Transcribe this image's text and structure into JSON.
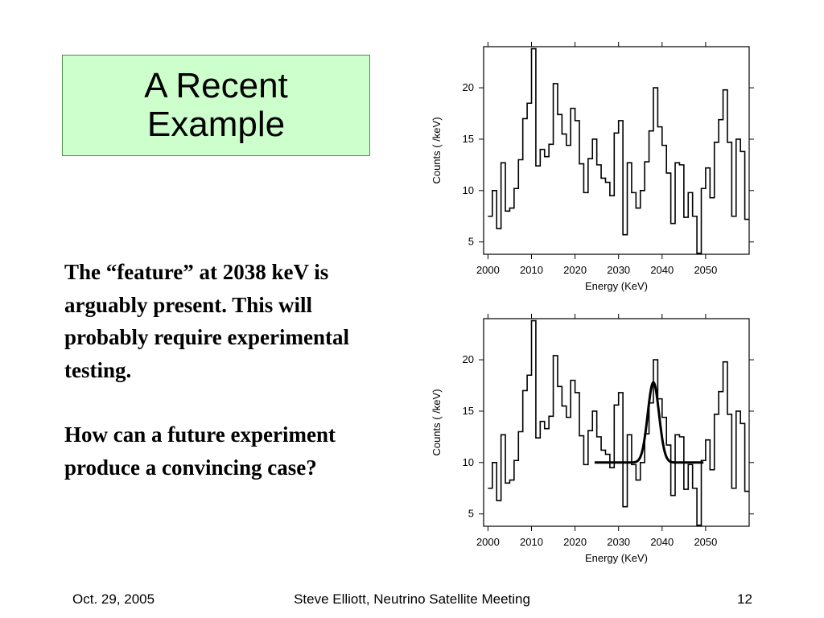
{
  "slide": {
    "title": "A Recent\nExample",
    "paragraphs": [
      "The “feature” at 2038 keV is arguably present. This will probably require experimental testing.",
      "How can a future experiment produce a convincing case?"
    ]
  },
  "footer": {
    "date": "Oct. 29, 2005",
    "center": "Steve Elliott, Neutrino Satellite Meeting",
    "page": "12"
  },
  "chart_data": [
    {
      "type": "line",
      "step": true,
      "xlabel": "Energy (KeV)",
      "ylabel": "Counts ( /keV)",
      "xlim": [
        1999,
        2060
      ],
      "ylim": [
        3.8,
        24
      ],
      "xticks": [
        2000,
        2010,
        2020,
        2030,
        2040,
        2050
      ],
      "yticks": [
        5,
        10,
        15,
        20
      ],
      "series": [
        {
          "x": [
            2000,
            2001,
            2002,
            2003,
            2004,
            2005,
            2006,
            2007,
            2008,
            2009,
            2010,
            2011,
            2012,
            2013,
            2014,
            2015,
            2016,
            2017,
            2018,
            2019,
            2020,
            2021,
            2022,
            2023,
            2024,
            2025,
            2026,
            2027,
            2028,
            2029,
            2030,
            2031,
            2032,
            2033,
            2034,
            2035,
            2036,
            2037,
            2038,
            2039,
            2040,
            2041,
            2042,
            2043,
            2044,
            2045,
            2046,
            2047,
            2048,
            2049,
            2050,
            2051,
            2052,
            2053,
            2054,
            2055,
            2056,
            2057,
            2058,
            2059
          ],
          "y": [
            7.5,
            10,
            6.3,
            12.7,
            8,
            8.3,
            10.2,
            13,
            17,
            18.5,
            23.8,
            12.4,
            14,
            13.3,
            14.5,
            20.4,
            17.4,
            15.5,
            14.4,
            18,
            16.8,
            12.6,
            9.8,
            13.1,
            15,
            12.5,
            11.2,
            10.8,
            9.5,
            15.6,
            16.8,
            5.7,
            12.7,
            9.8,
            8.3,
            10,
            12.8,
            15.8,
            20,
            16.2,
            14.4,
            11.7,
            6.8,
            12.7,
            12.5,
            7.4,
            9.8,
            7.5,
            3.9,
            10.2,
            12.2,
            9.3,
            14.7,
            16.9,
            19.8,
            14.7,
            7.5,
            15,
            13.8,
            7.2
          ]
        }
      ]
    },
    {
      "type": "line",
      "step": true,
      "xlabel": "Energy (KeV)",
      "ylabel": "Counts ( /keV)",
      "xlim": [
        1999,
        2060
      ],
      "ylim": [
        3.8,
        24
      ],
      "xticks": [
        2000,
        2010,
        2020,
        2030,
        2040,
        2050
      ],
      "yticks": [
        5,
        10,
        15,
        20
      ],
      "series": [
        {
          "x": [
            2000,
            2001,
            2002,
            2003,
            2004,
            2005,
            2006,
            2007,
            2008,
            2009,
            2010,
            2011,
            2012,
            2013,
            2014,
            2015,
            2016,
            2017,
            2018,
            2019,
            2020,
            2021,
            2022,
            2023,
            2024,
            2025,
            2026,
            2027,
            2028,
            2029,
            2030,
            2031,
            2032,
            2033,
            2034,
            2035,
            2036,
            2037,
            2038,
            2039,
            2040,
            2041,
            2042,
            2043,
            2044,
            2045,
            2046,
            2047,
            2048,
            2049,
            2050,
            2051,
            2052,
            2053,
            2054,
            2055,
            2056,
            2057,
            2058,
            2059
          ],
          "y": [
            7.5,
            10,
            6.3,
            12.7,
            8,
            8.3,
            10.2,
            13,
            17,
            18.5,
            23.8,
            12.4,
            14,
            13.3,
            14.5,
            20.4,
            17.4,
            15.5,
            14.4,
            18,
            16.8,
            12.6,
            9.8,
            13.1,
            15,
            12.5,
            11.2,
            10.8,
            9.5,
            15.6,
            16.8,
            5.7,
            12.7,
            9.8,
            8.3,
            10,
            12.8,
            15.8,
            20,
            16.2,
            14.4,
            11.7,
            6.8,
            12.7,
            12.5,
            7.4,
            9.8,
            7.5,
            3.9,
            10.2,
            12.2,
            9.3,
            14.7,
            16.9,
            19.8,
            14.7,
            7.5,
            15,
            13.8,
            7.2
          ]
        }
      ],
      "fit": {
        "x_range": [
          2024.5,
          2049.5
        ],
        "baseline": 10,
        "peak_center": 2038,
        "peak_amplitude": 7.8,
        "peak_sigma": 1.3
      }
    }
  ]
}
